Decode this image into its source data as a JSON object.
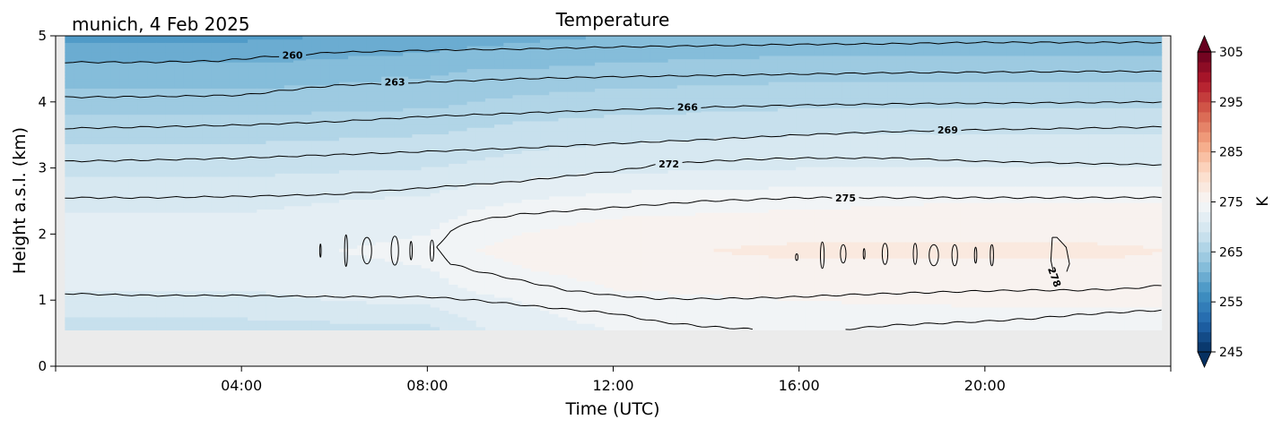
{
  "chart_data": {
    "type": "heatmap",
    "title": "Temperature",
    "subtitle": "munich, 4 Feb 2025",
    "xlabel": "Time (UTC)",
    "ylabel": "Height a.s.l. (km)",
    "x_unit": "hours UTC",
    "xlim": [
      0,
      24
    ],
    "ylim": [
      0,
      5
    ],
    "xticks": [
      4,
      8,
      12,
      16,
      20
    ],
    "xtick_labels": [
      "04:00",
      "08:00",
      "12:00",
      "16:00",
      "20:00"
    ],
    "yticks": [
      0,
      1,
      2,
      3,
      4,
      5
    ],
    "ytick_labels": [
      "0",
      "1",
      "2",
      "3",
      "4",
      "5"
    ],
    "grid": false,
    "background_color": "#ebebeb",
    "data_ylim": [
      0.55,
      5.0
    ],
    "colorbar": {
      "label": "K",
      "vmin": 245,
      "vmax": 305,
      "ticks": [
        245,
        255,
        265,
        275,
        285,
        295,
        305
      ],
      "tick_labels": [
        "245",
        "255",
        "265",
        "275",
        "285",
        "295",
        "305"
      ],
      "levels": 30,
      "colormap": "RdBu_r",
      "extend": "both"
    },
    "temperature_profile": {
      "heights_km": [
        0.55,
        1.0,
        1.5,
        1.75,
        2.0,
        2.5,
        3.0,
        3.5,
        4.0,
        4.5,
        5.0
      ],
      "hours": [
        0,
        4,
        8,
        9,
        10,
        12,
        16,
        20,
        22,
        24
      ],
      "values_K": [
        [
          268.0,
          268.0,
          268.5,
          270.5,
          272.0,
          273.0,
          273.5,
          273.0,
          273.0,
          273.0
        ],
        [
          270.5,
          270.5,
          271.5,
          272.5,
          273.0,
          274.5,
          275.0,
          275.5,
          275.5,
          275.5
        ],
        [
          272.0,
          272.0,
          273.0,
          274.5,
          275.0,
          276.0,
          276.5,
          276.5,
          276.5,
          276.5
        ],
        [
          272.5,
          272.5,
          273.5,
          275.0,
          275.5,
          276.5,
          277.5,
          277.5,
          277.5,
          277.0
        ],
        [
          272.0,
          272.0,
          273.0,
          274.5,
          275.0,
          276.0,
          276.5,
          276.5,
          276.5,
          276.5
        ],
        [
          270.5,
          270.5,
          271.5,
          272.5,
          273.0,
          274.0,
          274.5,
          275.0,
          275.0,
          275.0
        ],
        [
          268.5,
          268.5,
          269.0,
          269.5,
          270.0,
          270.5,
          271.0,
          271.0,
          271.0,
          271.0
        ],
        [
          266.5,
          266.5,
          267.0,
          267.5,
          268.0,
          268.5,
          269.0,
          269.0,
          269.0,
          269.0
        ],
        [
          264.0,
          264.0,
          264.5,
          265.0,
          265.5,
          266.0,
          266.5,
          266.5,
          266.5,
          266.5
        ],
        [
          261.5,
          261.5,
          262.5,
          263.0,
          263.0,
          263.5,
          264.0,
          264.0,
          264.0,
          264.0
        ],
        [
          258.5,
          258.5,
          259.5,
          260.0,
          260.5,
          261.0,
          261.5,
          261.5,
          261.5,
          261.5
        ]
      ]
    },
    "contour_lines": [
      {
        "level": 260,
        "label": "260",
        "label_x": 5.1,
        "x": [
          0.2,
          2,
          3.5,
          4.5,
          6,
          8,
          10,
          12,
          14,
          16,
          18,
          20,
          22,
          23.8
        ],
        "y": [
          4.6,
          4.6,
          4.62,
          4.68,
          4.75,
          4.78,
          4.8,
          4.83,
          4.85,
          4.87,
          4.88,
          4.9,
          4.9,
          4.9
        ]
      },
      {
        "level": 263,
        "label": "263",
        "label_x": 7.3,
        "x": [
          0.2,
          2,
          4,
          5,
          6,
          8,
          10,
          12,
          14,
          16,
          18,
          20,
          22,
          23.8
        ],
        "y": [
          4.07,
          4.08,
          4.1,
          4.18,
          4.25,
          4.3,
          4.35,
          4.38,
          4.4,
          4.42,
          4.44,
          4.45,
          4.46,
          4.46
        ]
      },
      {
        "level": 266,
        "label": "266",
        "label_x": 13.6,
        "x": [
          0.2,
          2,
          4,
          6,
          8,
          10,
          12,
          14,
          16,
          18,
          20,
          22,
          23.8
        ],
        "y": [
          3.6,
          3.62,
          3.65,
          3.7,
          3.78,
          3.83,
          3.88,
          3.92,
          3.95,
          3.97,
          3.98,
          3.99,
          4.0
        ]
      },
      {
        "level": 269,
        "label": "269",
        "label_x": 19.2,
        "x": [
          0.2,
          2,
          4,
          6,
          8,
          10,
          12,
          14,
          16,
          18,
          20,
          22,
          23.8
        ],
        "y": [
          3.1,
          3.12,
          3.15,
          3.2,
          3.25,
          3.3,
          3.37,
          3.43,
          3.5,
          3.55,
          3.58,
          3.6,
          3.62
        ]
      },
      {
        "level": 272,
        "label": "272",
        "label_x": 13.2,
        "x": [
          0.2,
          2,
          4,
          6,
          8,
          10,
          12,
          13,
          14,
          15,
          16,
          18,
          20,
          22,
          23.8
        ],
        "y": [
          2.55,
          2.55,
          2.57,
          2.6,
          2.7,
          2.8,
          2.95,
          3.05,
          3.1,
          3.13,
          3.15,
          3.15,
          3.1,
          3.07,
          3.05
        ]
      },
      {
        "level": 272,
        "label": "",
        "label_x": null,
        "x": [
          0.2,
          2,
          4,
          6,
          8,
          9,
          10,
          11,
          12,
          13,
          14,
          15
        ],
        "y": [
          1.1,
          1.07,
          1.07,
          1.05,
          1.05,
          1.0,
          0.93,
          0.86,
          0.8,
          0.67,
          0.6,
          0.56
        ]
      },
      {
        "level": 272,
        "label": "",
        "label_x": null,
        "x": [
          17,
          18,
          19,
          20,
          21,
          22,
          23,
          23.8
        ],
        "y": [
          0.56,
          0.62,
          0.65,
          0.68,
          0.72,
          0.78,
          0.82,
          0.85
        ]
      },
      {
        "level": 275,
        "label": "275",
        "label_x": 17.0,
        "x": [
          8.2,
          8.5,
          9,
          10,
          11,
          12,
          13,
          14,
          15,
          16,
          17,
          18,
          19,
          20,
          21,
          22,
          23,
          23.8
        ],
        "y": [
          1.8,
          2.05,
          2.2,
          2.3,
          2.35,
          2.4,
          2.45,
          2.5,
          2.52,
          2.55,
          2.55,
          2.55,
          2.55,
          2.55,
          2.55,
          2.55,
          2.55,
          2.55
        ]
      },
      {
        "level": 275,
        "label": "",
        "label_x": null,
        "x": [
          8.2,
          8.5,
          9,
          10,
          11,
          12,
          13,
          14,
          15,
          16,
          17,
          18,
          19,
          20,
          21,
          22,
          23,
          23.8
        ],
        "y": [
          1.8,
          1.55,
          1.45,
          1.3,
          1.15,
          1.07,
          1.02,
          1.02,
          1.03,
          1.05,
          1.08,
          1.1,
          1.12,
          1.14,
          1.15,
          1.15,
          1.17,
          1.22
        ]
      },
      {
        "level": 278,
        "label": "278",
        "label_x": 21.5,
        "x": [
          21.45,
          21.55,
          21.75,
          21.82,
          21.72,
          21.5,
          21.42,
          21.45
        ],
        "y": [
          1.95,
          1.95,
          1.8,
          1.55,
          1.35,
          1.35,
          1.6,
          1.95
        ]
      }
    ],
    "contour_islands": [
      {
        "x": 5.7,
        "y": 1.75,
        "w": 0.03,
        "h": 0.1
      },
      {
        "x": 6.25,
        "y": 1.75,
        "w": 0.06,
        "h": 0.24
      },
      {
        "x": 6.7,
        "y": 1.75,
        "w": 0.2,
        "h": 0.2
      },
      {
        "x": 7.3,
        "y": 1.75,
        "w": 0.16,
        "h": 0.22
      },
      {
        "x": 7.65,
        "y": 1.75,
        "w": 0.05,
        "h": 0.14
      },
      {
        "x": 8.1,
        "y": 1.75,
        "w": 0.08,
        "h": 0.16
      },
      {
        "x": 15.95,
        "y": 1.65,
        "w": 0.05,
        "h": 0.05
      },
      {
        "x": 16.5,
        "y": 1.68,
        "w": 0.08,
        "h": 0.2
      },
      {
        "x": 16.95,
        "y": 1.7,
        "w": 0.12,
        "h": 0.14
      },
      {
        "x": 17.4,
        "y": 1.7,
        "w": 0.04,
        "h": 0.08
      },
      {
        "x": 17.85,
        "y": 1.7,
        "w": 0.12,
        "h": 0.16
      },
      {
        "x": 18.5,
        "y": 1.7,
        "w": 0.08,
        "h": 0.16
      },
      {
        "x": 18.9,
        "y": 1.68,
        "w": 0.2,
        "h": 0.16
      },
      {
        "x": 19.35,
        "y": 1.68,
        "w": 0.12,
        "h": 0.16
      },
      {
        "x": 19.8,
        "y": 1.68,
        "w": 0.05,
        "h": 0.12
      },
      {
        "x": 20.15,
        "y": 1.68,
        "w": 0.07,
        "h": 0.16
      }
    ]
  }
}
